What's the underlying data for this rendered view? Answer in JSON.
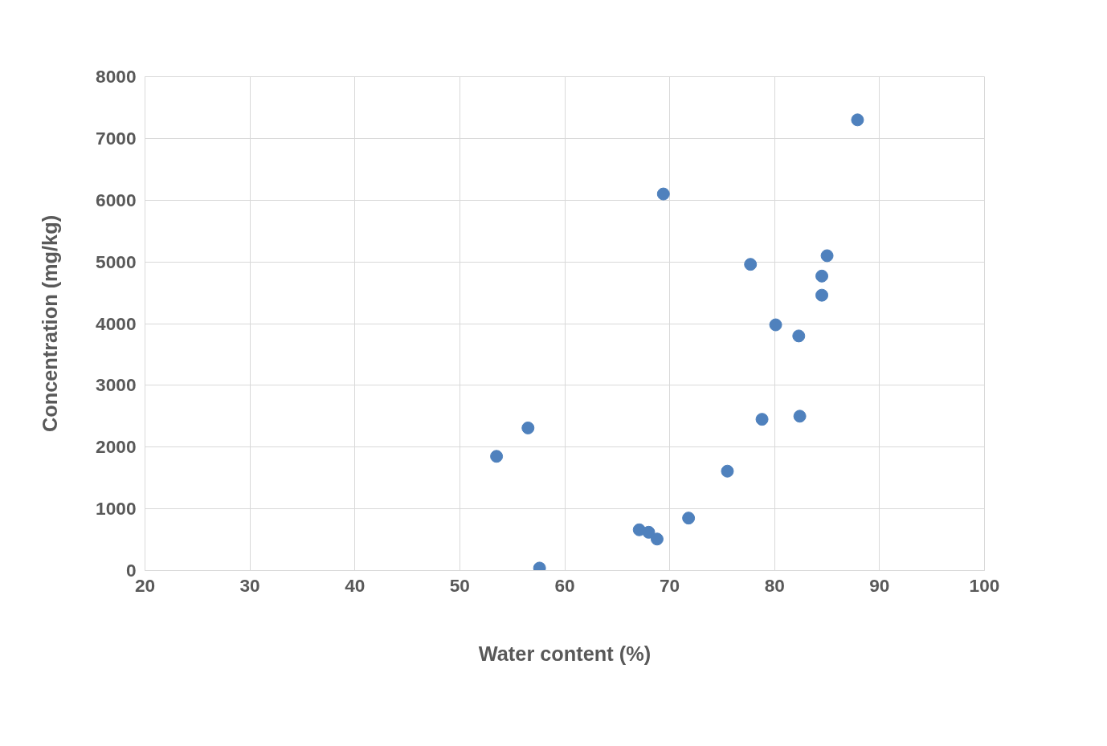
{
  "chart_data": {
    "type": "scatter",
    "xlabel": "Water content (%)",
    "ylabel": "Concentration (mg/kg)",
    "x": [
      87.9,
      69.4,
      77.7,
      85.0,
      84.5,
      84.5,
      80.1,
      82.3,
      82.4,
      78.8,
      56.5,
      53.5,
      75.5,
      71.8,
      67.1,
      68.0,
      68.8,
      57.6
    ],
    "series": [
      {
        "color": "#4f81bd",
        "values": [
          7300,
          6100,
          4960,
          5100,
          4770,
          4460,
          3980,
          3800,
          2500,
          2450,
          2310,
          1850,
          1610,
          850,
          660,
          620,
          510,
          40
        ]
      }
    ],
    "xlim": [
      20,
      100
    ],
    "xticks": [
      20,
      30,
      40,
      50,
      60,
      70,
      80,
      90,
      100
    ],
    "ylim": [
      0,
      8000
    ],
    "yticks": [
      0,
      1000,
      2000,
      3000,
      4000,
      5000,
      6000,
      7000,
      8000
    ],
    "grid": true,
    "marker": "circle"
  }
}
